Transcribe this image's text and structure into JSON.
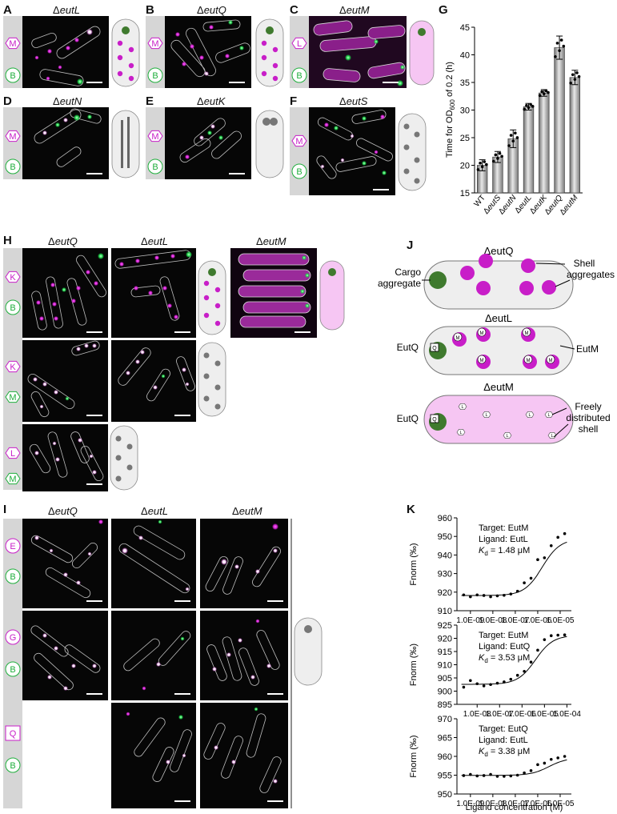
{
  "panels": {
    "A": {
      "letter": "A",
      "title_delta": "Δ",
      "title_gene": "eutL"
    },
    "B": {
      "letter": "B",
      "title_delta": "Δ",
      "title_gene": "eutQ"
    },
    "C": {
      "letter": "C",
      "title_delta": "Δ",
      "title_gene": "eutM"
    },
    "D": {
      "letter": "D",
      "title_delta": "Δ",
      "title_gene": "eutN"
    },
    "E": {
      "letter": "E",
      "title_delta": "Δ",
      "title_gene": "eutK"
    },
    "F": {
      "letter": "F",
      "title_delta": "Δ",
      "title_gene": "eutS"
    },
    "G": {
      "letter": "G"
    },
    "H": {
      "letter": "H",
      "col1_gene": "eutQ",
      "col2_gene": "eutL",
      "col3_gene": "eutM",
      "delta": "Δ"
    },
    "I": {
      "letter": "I",
      "col1_gene": "eutQ",
      "col2_gene": "eutL",
      "col3_gene": "eutM",
      "delta": "Δ"
    },
    "J": {
      "letter": "J"
    },
    "K": {
      "letter": "K"
    }
  },
  "markers": {
    "M": "M",
    "B": "B",
    "L": "L",
    "K": "K",
    "E": "E",
    "G": "G",
    "Q": "Q"
  },
  "colors": {
    "magenta": "#c81ec8",
    "green": "#1fae3c",
    "pink": "#f6c6f3",
    "cargo": "#3f7a2e",
    "cellgray": "#eeeeee",
    "dotgray": "#777777"
  },
  "chart_data": [
    {
      "type": "bar",
      "ylabel": "Time for OD600 of 0.2 (h)",
      "ylabel_main": "Time for OD",
      "ylabel_sub": "600",
      "ylabel_tail": " of 0.2 (h)",
      "categories": [
        "WT",
        "ΔeutS",
        "ΔeutN",
        "ΔeutL",
        "ΔeutK",
        "ΔeutQ",
        "ΔeutM"
      ],
      "values": [
        20.0,
        21.5,
        24.8,
        30.6,
        33.1,
        41.3,
        35.9
      ],
      "errors": [
        1.0,
        1.0,
        1.6,
        0.6,
        0.6,
        2.1,
        1.3
      ],
      "ylim": [
        15,
        45
      ],
      "yticks": [
        15,
        20,
        25,
        30,
        35,
        40,
        45
      ]
    },
    {
      "type": "scatter",
      "label_target": "Target: EutM",
      "label_ligand": "Ligand: EutL",
      "kd": "K",
      "kd_sub": "d",
      "kd_value": " = 1.48 μM",
      "ylabel": "Fnorm (‰)",
      "ylim": [
        910,
        960
      ],
      "yticks": [
        910,
        920,
        930,
        940,
        950,
        960
      ],
      "xticks": [
        "1.0E-09",
        "1.0E-08",
        "1.0E-07",
        "1.0E-06",
        "1.0E-05"
      ],
      "x_exponents": [
        -9.3,
        -9.0,
        -8.7,
        -8.4,
        -8.1,
        -7.8,
        -7.5,
        -7.2,
        -6.9,
        -6.6,
        -6.3,
        -6.0,
        -5.7,
        -5.4,
        -5.1,
        -4.8
      ],
      "y": [
        918.5,
        917.5,
        918.5,
        918.2,
        917.5,
        918.0,
        918.3,
        919.0,
        920.5,
        925.0,
        927.5,
        937.5,
        938.5,
        945.0,
        949.5,
        951.5
      ]
    },
    {
      "type": "scatter",
      "label_target": "Target: EutM",
      "label_ligand": "Ligand: EutQ",
      "kd": "K",
      "kd_sub": "d",
      "kd_value": " = 3.53 μM",
      "ylabel": "Fnorm (‰)",
      "ylim": [
        895,
        925
      ],
      "yticks": [
        895,
        900,
        905,
        910,
        915,
        920,
        925
      ],
      "xticks": [
        "1.0E-08",
        "1.0E-07",
        "1.0E-06",
        "1.0E-05",
        "1.0E-04"
      ],
      "x_exponents": [
        -8.6,
        -8.3,
        -8.0,
        -7.7,
        -7.4,
        -7.1,
        -6.8,
        -6.5,
        -6.2,
        -5.9,
        -5.6,
        -5.3,
        -5.0,
        -4.7,
        -4.4,
        -4.1
      ],
      "y": [
        901.5,
        904.0,
        902.8,
        902.0,
        902.5,
        903.0,
        903.5,
        904.5,
        906.0,
        907.5,
        911.0,
        915.5,
        919.5,
        921.0,
        921.2,
        921.3
      ]
    },
    {
      "type": "scatter",
      "label_target": "Target: EutQ",
      "label_ligand": "Ligand: EutL",
      "kd": "K",
      "kd_sub": "d",
      "kd_value": " = 3.38 μM",
      "ylabel": "Fnorm (‰)",
      "xlabel": "Ligand concentration (M)",
      "ylim": [
        950,
        970
      ],
      "yticks": [
        950,
        955,
        960,
        965,
        970
      ],
      "xticks": [
        "1.0E-09",
        "1.0E-08",
        "1.0E-07",
        "1.0E-06",
        "1.0E-05"
      ],
      "x_exponents": [
        -9.3,
        -9.0,
        -8.7,
        -8.4,
        -8.1,
        -7.8,
        -7.5,
        -7.2,
        -6.9,
        -6.6,
        -6.3,
        -6.0,
        -5.7,
        -5.4,
        -5.1,
        -4.8
      ],
      "y": [
        954.9,
        955.2,
        954.8,
        954.9,
        955.2,
        954.7,
        954.7,
        954.8,
        955.0,
        955.6,
        956.2,
        957.8,
        958.2,
        959.2,
        959.6,
        960.0
      ]
    }
  ],
  "diagram": {
    "title_q": "ΔeutQ",
    "title_l": "ΔeutL",
    "title_m": "ΔeutM",
    "cargo_aggregate_1": "Cargo",
    "cargo_aggregate_2": "aggregate",
    "shell_aggregates_1": "Shell",
    "shell_aggregates_2": "aggregates",
    "eutq_label": "EutQ",
    "eutm_label": "EutM",
    "freely_1": "Freely",
    "freely_2": "distributed",
    "freely_3": "shell",
    "q_marker": "Q",
    "m_marker": "M",
    "l_marker": "L"
  }
}
